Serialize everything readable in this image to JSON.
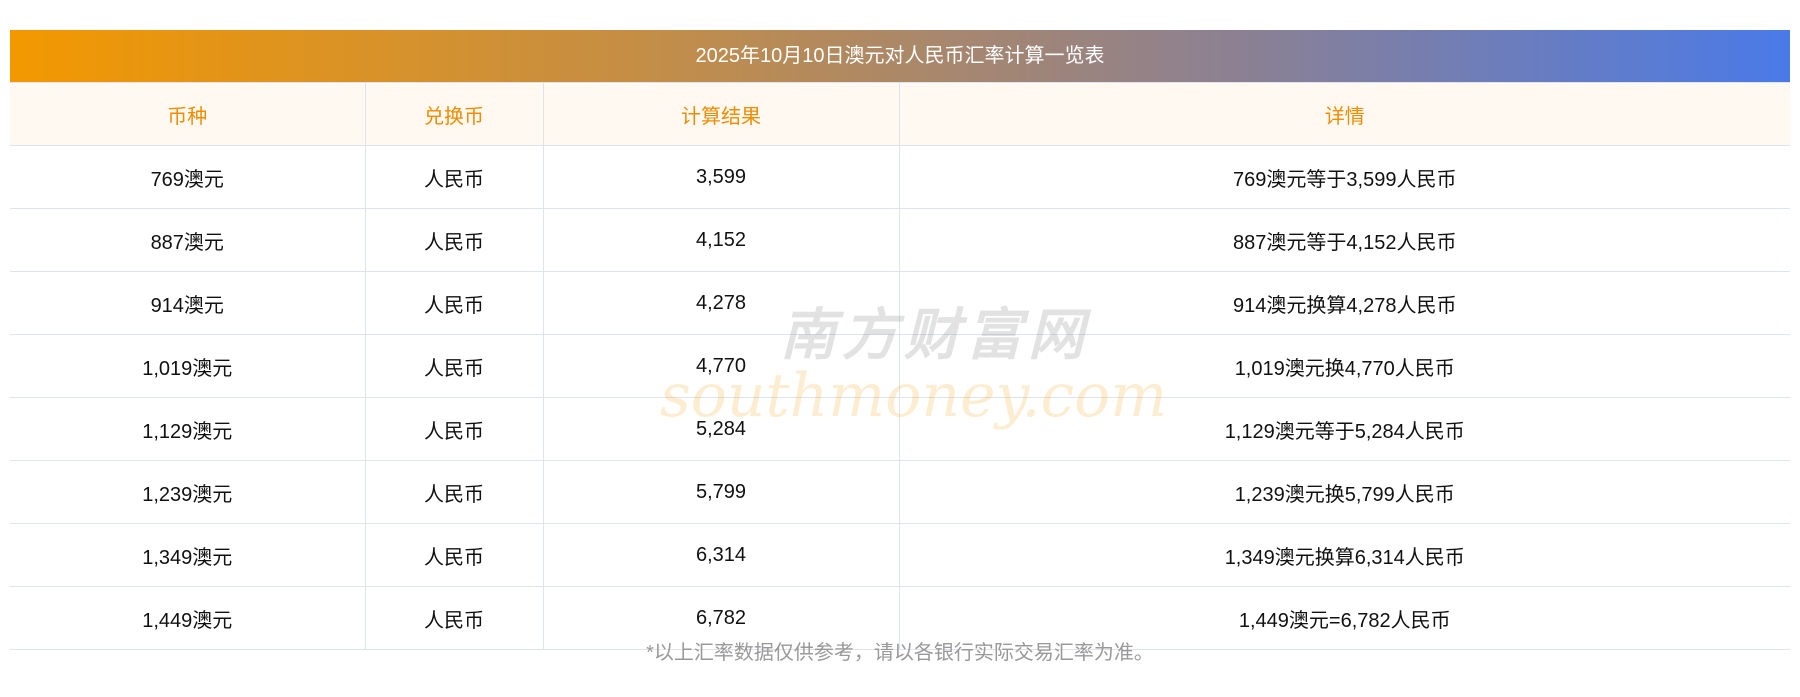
{
  "title": "2025年10月10日澳元对人民币汇率计算一览表",
  "headers": [
    "币种",
    "兑换币",
    "计算结果",
    "详情"
  ],
  "rows": [
    {
      "from": "769澳元",
      "to": "人民币",
      "result": "3,599",
      "detail": "769澳元等于3,599人民币"
    },
    {
      "from": "887澳元",
      "to": "人民币",
      "result": "4,152",
      "detail": "887澳元等于4,152人民币"
    },
    {
      "from": "914澳元",
      "to": "人民币",
      "result": "4,278",
      "detail": "914澳元换算4,278人民币"
    },
    {
      "from": "1,019澳元",
      "to": "人民币",
      "result": "4,770",
      "detail": "1,019澳元换4,770人民币"
    },
    {
      "from": "1,129澳元",
      "to": "人民币",
      "result": "5,284",
      "detail": "1,129澳元等于5,284人民币"
    },
    {
      "from": "1,239澳元",
      "to": "人民币",
      "result": "5,799",
      "detail": "1,239澳元换5,799人民币"
    },
    {
      "from": "1,349澳元",
      "to": "人民币",
      "result": "6,314",
      "detail": "1,349澳元换算6,314人民币"
    },
    {
      "from": "1,449澳元",
      "to": "人民币",
      "result": "6,782",
      "detail": "1,449澳元=6,782人民币"
    }
  ],
  "note": "*以上汇率数据仅供参考，请以各银行实际交易汇率为准。",
  "watermark": {
    "cn": "南方财富网",
    "en": "southmoney.com"
  }
}
